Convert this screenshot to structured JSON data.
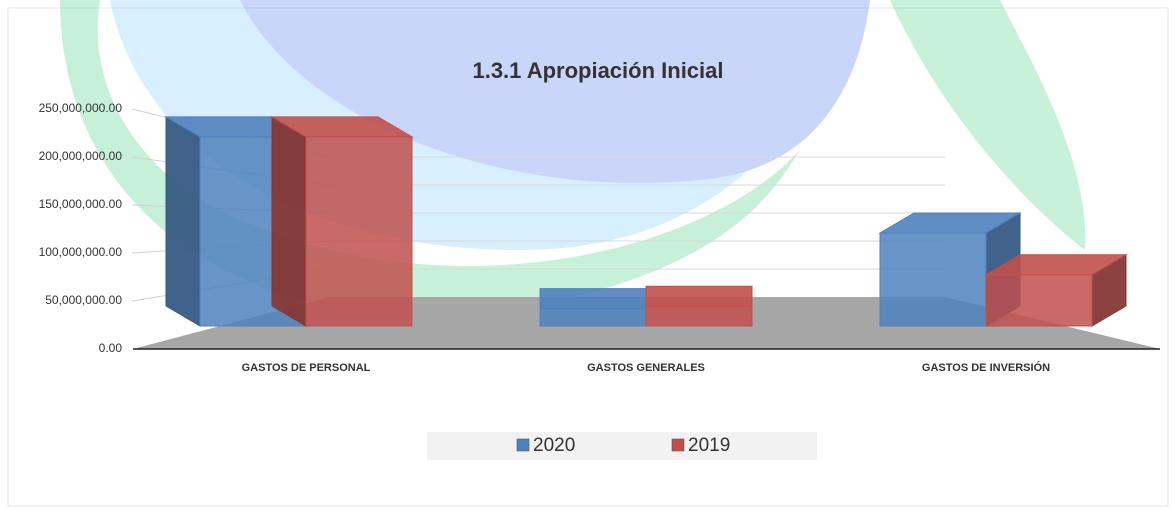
{
  "chart_data": {
    "type": "bar3d",
    "title": "1.3.1 Apropiación Inicial",
    "categories": [
      "GASTOS DE PERSONAL",
      "GASTOS GENERALES",
      "GASTOS DE INVERSIÓN"
    ],
    "series": [
      {
        "name": "2020",
        "color": "#4f81bd",
        "values": [
          240000000,
          22000000,
          118000000
        ]
      },
      {
        "name": "2019",
        "color": "#c0504d",
        "values": [
          240000000,
          25000000,
          65000000
        ]
      }
    ],
    "ylim": [
      0,
      250000000
    ],
    "yticks": [
      {
        "value": 0,
        "label": "0.00"
      },
      {
        "value": 50000000,
        "label": "50,000,000.00"
      },
      {
        "value": 100000000,
        "label": "100,000,000.00"
      },
      {
        "value": 150000000,
        "label": "150,000,000.00"
      },
      {
        "value": 200000000,
        "label": "200,000,000.00"
      },
      {
        "value": 250000000,
        "label": "250,000,000.00"
      }
    ],
    "grid": true,
    "legend": "bottom"
  }
}
